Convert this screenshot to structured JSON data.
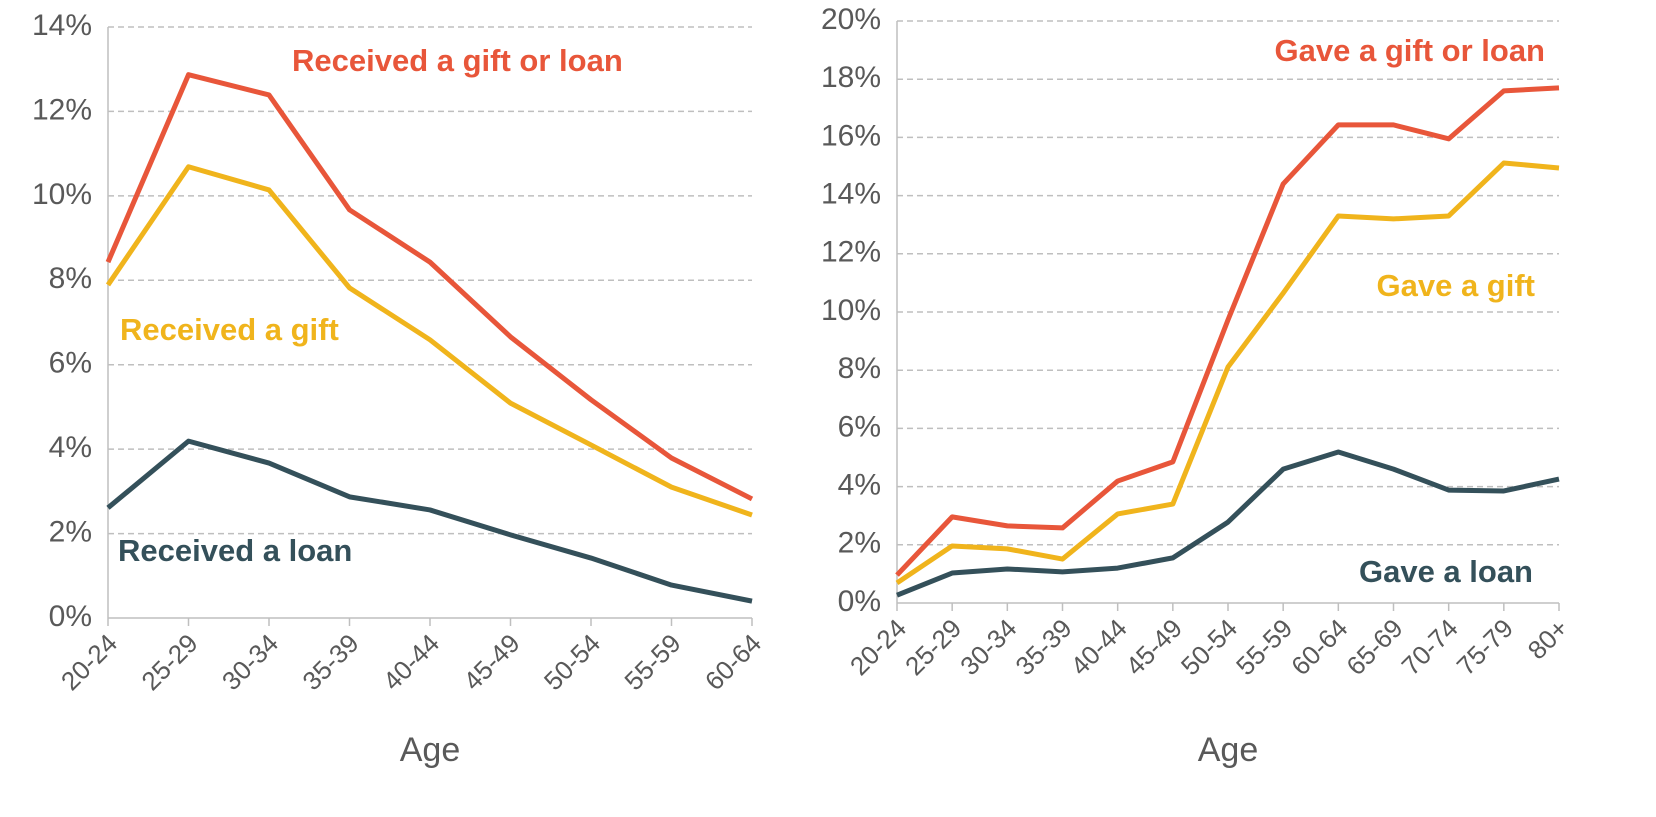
{
  "chart_data": [
    {
      "type": "line",
      "x_label": "Age",
      "categories": [
        "20-24",
        "25-29",
        "30-34",
        "35-39",
        "40-44",
        "45-49",
        "50-54",
        "55-59",
        "60-64"
      ],
      "series": [
        {
          "name": "Received a gift or loan",
          "color": "#e8563a",
          "values": [
            8.43,
            12.87,
            12.39,
            9.67,
            8.43,
            6.66,
            5.17,
            3.79,
            2.82
          ]
        },
        {
          "name": "Received a gift",
          "color": "#f0b41c",
          "values": [
            7.89,
            10.69,
            10.14,
            7.82,
            6.59,
            5.09,
            4.1,
            3.1,
            2.44
          ]
        },
        {
          "name": "Received a loan",
          "color": "#34505a",
          "values": [
            2.61,
            4.19,
            3.67,
            2.87,
            2.56,
            1.97,
            1.42,
            0.78,
            0.4
          ]
        }
      ],
      "ylim": [
        0,
        14
      ],
      "yticks": [
        {
          "value": 0,
          "label": "0%"
        },
        {
          "value": 2,
          "label": "2%"
        },
        {
          "value": 4,
          "label": "4%"
        },
        {
          "value": 6,
          "label": "6%"
        },
        {
          "value": 8,
          "label": "8%"
        },
        {
          "value": 10,
          "label": "10%"
        },
        {
          "value": 12,
          "label": "12%"
        },
        {
          "value": 14,
          "label": "14%"
        }
      ],
      "grid": true
    },
    {
      "type": "line",
      "x_label": "Age",
      "categories": [
        "20-24",
        "25-29",
        "30-34",
        "35-39",
        "40-44",
        "45-49",
        "50-54",
        "55-59",
        "60-64",
        "65-69",
        "70-74",
        "75-79",
        "80+"
      ],
      "series": [
        {
          "name": "Gave a gift or loan",
          "color": "#e8563a",
          "values": [
            0.96,
            2.96,
            2.65,
            2.58,
            4.19,
            4.85,
            9.73,
            14.4,
            16.43,
            16.43,
            15.95,
            17.6,
            17.7
          ]
        },
        {
          "name": "Gave a gift",
          "color": "#f0b41c",
          "values": [
            0.69,
            1.96,
            1.86,
            1.51,
            3.06,
            3.4,
            8.11,
            10.65,
            13.3,
            13.2,
            13.3,
            15.12,
            14.95
          ]
        },
        {
          "name": "Gave a loan",
          "color": "#34505a",
          "values": [
            0.27,
            1.03,
            1.17,
            1.07,
            1.2,
            1.55,
            2.78,
            4.6,
            5.19,
            4.6,
            3.88,
            3.85,
            4.26
          ]
        }
      ],
      "ylim": [
        0,
        20
      ],
      "yticks": [
        {
          "value": 0,
          "label": "0%"
        },
        {
          "value": 2,
          "label": "2%"
        },
        {
          "value": 4,
          "label": "4%"
        },
        {
          "value": 6,
          "label": "6%"
        },
        {
          "value": 8,
          "label": "8%"
        },
        {
          "value": 10,
          "label": "10%"
        },
        {
          "value": 12,
          "label": "12%"
        },
        {
          "value": 14,
          "label": "14%"
        },
        {
          "value": 16,
          "label": "16%"
        },
        {
          "value": 18,
          "label": "18%"
        },
        {
          "value": 20,
          "label": "20%"
        }
      ],
      "grid": true
    }
  ]
}
